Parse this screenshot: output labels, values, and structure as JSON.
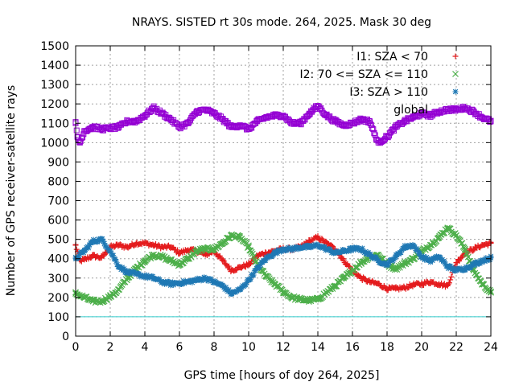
{
  "chart_data": {
    "type": "scatter",
    "title": "NRAYS. SISTED rt 30s mode. 264, 2025. Mask 30 deg",
    "xlabel": "GPS time [hours of doy 264, 2025]",
    "ylabel": "Number of GPS receiver-satellite rays",
    "xlim": [
      0,
      24
    ],
    "ylim": [
      0,
      1500
    ],
    "xticks": [
      0,
      2,
      4,
      6,
      8,
      10,
      12,
      14,
      16,
      18,
      20,
      22,
      24
    ],
    "yticks": [
      0,
      100,
      200,
      300,
      400,
      500,
      600,
      700,
      800,
      900,
      1000,
      1100,
      1200,
      1300,
      1400,
      1500
    ],
    "grid": true,
    "legend_position": "top-right",
    "reference_line": {
      "y": 100,
      "color": "#33cccc"
    },
    "series": [
      {
        "name": "I1: SZA < 70",
        "marker": "+",
        "color": "#e41a1c",
        "x": [
          0,
          0.25,
          0.5,
          1,
          1.5,
          2,
          2.5,
          3,
          3.5,
          4,
          4.5,
          5,
          5.5,
          6,
          6.5,
          7,
          7.5,
          8,
          8.5,
          9,
          9.5,
          10,
          10.5,
          11,
          11.5,
          12,
          12.5,
          13,
          13.5,
          14,
          14.5,
          15,
          15.5,
          16,
          16.5,
          17,
          17.5,
          18,
          18.5,
          19,
          19.5,
          20,
          20.5,
          21,
          21.5,
          22,
          22.5,
          23,
          23.5,
          24
        ],
        "y": [
          470,
          390,
          395,
          415,
          405,
          460,
          470,
          460,
          480,
          480,
          470,
          460,
          460,
          430,
          445,
          440,
          420,
          440,
          390,
          340,
          355,
          370,
          415,
          430,
          440,
          450,
          450,
          460,
          490,
          510,
          480,
          450,
          390,
          340,
          300,
          280,
          270,
          245,
          245,
          250,
          265,
          270,
          280,
          270,
          260,
          380,
          430,
          450,
          470,
          480
        ]
      },
      {
        "name": "I2: 70 <= SZA <= 110",
        "marker": "x",
        "color": "#4daf4a",
        "x": [
          0,
          0.5,
          1,
          1.5,
          2,
          2.5,
          3,
          3.5,
          4,
          4.5,
          5,
          5.5,
          6,
          6.5,
          7,
          7.5,
          8,
          8.5,
          9,
          9.5,
          10,
          10.5,
          11,
          11.5,
          12,
          12.5,
          13,
          13.5,
          14,
          14.5,
          15,
          15.5,
          16,
          16.5,
          17,
          17.5,
          18,
          18.5,
          19,
          19.5,
          20,
          20.5,
          21,
          21.5,
          22,
          22.5,
          23,
          23.5,
          24
        ],
        "y": [
          220,
          200,
          180,
          180,
          205,
          240,
          300,
          350,
          390,
          420,
          410,
          390,
          370,
          400,
          440,
          450,
          450,
          480,
          520,
          510,
          460,
          370,
          310,
          270,
          230,
          200,
          190,
          185,
          190,
          225,
          260,
          300,
          340,
          380,
          410,
          420,
          370,
          350,
          375,
          400,
          440,
          470,
          510,
          560,
          520,
          450,
          340,
          270,
          225
        ]
      },
      {
        "name": "I3: SZA > 110",
        "marker": "*",
        "color": "#1f78b4",
        "x": [
          0,
          0.5,
          1,
          1.5,
          2,
          2.5,
          3,
          3.5,
          4,
          4.5,
          5,
          5.5,
          6,
          6.5,
          7,
          7.5,
          8,
          8.5,
          9,
          9.5,
          10,
          10.5,
          11,
          11.5,
          12,
          12.5,
          13,
          13.5,
          14,
          14.5,
          15,
          15.5,
          16,
          16.5,
          17,
          17.5,
          18,
          18.5,
          19,
          19.5,
          20,
          20.5,
          21,
          21.5,
          22,
          22.5,
          23,
          23.5,
          24
        ],
        "y": [
          400,
          440,
          490,
          500,
          440,
          360,
          330,
          320,
          310,
          300,
          280,
          270,
          275,
          280,
          290,
          300,
          280,
          260,
          220,
          240,
          290,
          350,
          400,
          430,
          450,
          450,
          460,
          460,
          470,
          450,
          430,
          440,
          450,
          450,
          420,
          390,
          370,
          410,
          460,
          470,
          410,
          390,
          410,
          360,
          340,
          350,
          370,
          390,
          405
        ]
      },
      {
        "name": "global",
        "marker": "square",
        "color": "#9400d3",
        "x": [
          0,
          0.1,
          0.25,
          0.5,
          1,
          1.5,
          2,
          2.5,
          3,
          3.5,
          4,
          4.5,
          5,
          5.5,
          6,
          6.5,
          7,
          7.5,
          8,
          8.5,
          9,
          9.5,
          10,
          10.5,
          11,
          11.5,
          12,
          12.5,
          13,
          13.5,
          14,
          14.5,
          15,
          15.5,
          16,
          16.5,
          17,
          17.25,
          17.5,
          18,
          18.5,
          19,
          19.5,
          20,
          20.5,
          21,
          21.5,
          22,
          22.5,
          23,
          23.5,
          24
        ],
        "y": [
          1100,
          1030,
          1000,
          1060,
          1080,
          1070,
          1075,
          1080,
          1110,
          1110,
          1140,
          1180,
          1150,
          1120,
          1080,
          1100,
          1160,
          1170,
          1150,
          1120,
          1080,
          1090,
          1070,
          1110,
          1130,
          1140,
          1140,
          1100,
          1100,
          1150,
          1190,
          1140,
          1110,
          1090,
          1100,
          1120,
          1110,
          1050,
          1000,
          1030,
          1080,
          1110,
          1130,
          1150,
          1140,
          1160,
          1170,
          1170,
          1180,
          1160,
          1130,
          1110
        ]
      }
    ]
  }
}
